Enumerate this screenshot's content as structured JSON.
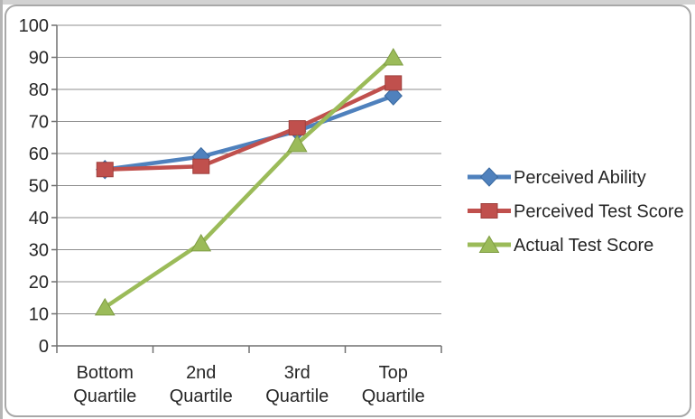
{
  "window": {
    "background_edge_top_color": "#d2d2d2",
    "background_edge_left_color": "#b5b5b5",
    "chart_border_color": "#a8a8a8",
    "chart_background_color": "#ffffff"
  },
  "chart_data": {
    "type": "line",
    "title": "",
    "xlabel": "",
    "ylabel": "",
    "categories": [
      "Bottom Quartile",
      "2nd Quartile",
      "3rd Quartile",
      "Top Quartile"
    ],
    "series": [
      {
        "name": "Perceived Ability",
        "marker": "diamond",
        "color": "#4F81BD",
        "marker_edge": "#38689f",
        "values": [
          55,
          59,
          67,
          78
        ]
      },
      {
        "name": "Perceived Test Score",
        "marker": "square",
        "color": "#C0504D",
        "marker_edge": "#9e3f3c",
        "values": [
          55,
          56,
          68,
          82
        ]
      },
      {
        "name": "Actual Test Score",
        "marker": "triangle",
        "color": "#9BBB59",
        "marker_edge": "#7e9c43",
        "values": [
          12,
          32,
          63,
          90
        ]
      }
    ],
    "ylim": [
      0,
      100
    ],
    "ytick_step": 10,
    "ytick_labels": [
      "0",
      "10",
      "20",
      "30",
      "40",
      "50",
      "60",
      "70",
      "80",
      "90",
      "100"
    ],
    "grid": true,
    "legend_position": "right",
    "gridline_color": "#8f8f8f",
    "axis_color": "#707070",
    "text_color": "#262626"
  }
}
